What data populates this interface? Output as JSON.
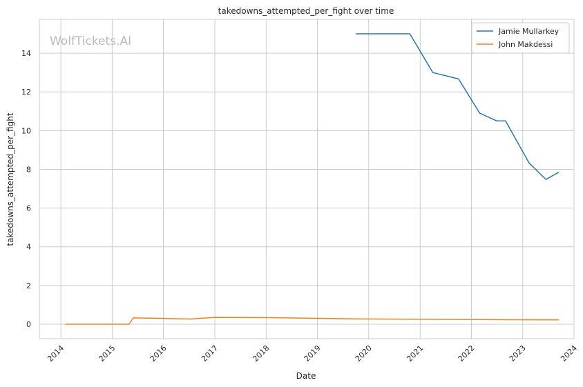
{
  "chart_data": {
    "type": "line",
    "title": "takedowns_attempted_per_fight over time",
    "xlabel": "Date",
    "ylabel": "takedowns_attempted_per_fight",
    "watermark": "WolfTickets.AI",
    "x_ticks": [
      "2014",
      "2015",
      "2016",
      "2017",
      "2018",
      "2019",
      "2020",
      "2021",
      "2022",
      "2023",
      "2024"
    ],
    "y_ticks": [
      "0",
      "2",
      "4",
      "6",
      "8",
      "10",
      "12",
      "14"
    ],
    "xlim": [
      "2013-08-01",
      "2024-01-01"
    ],
    "ylim": [
      -0.75,
      15.75
    ],
    "grid": true,
    "legend_position": "top-right",
    "series": [
      {
        "name": "Jamie Mullarkey",
        "color": "#1f77b4",
        "points": [
          [
            "2019-10-01",
            15.0
          ],
          [
            "2020-10-20",
            15.0
          ],
          [
            "2021-04-01",
            13.0
          ],
          [
            "2021-10-01",
            12.67
          ],
          [
            "2022-03-01",
            10.9
          ],
          [
            "2022-07-01",
            10.5
          ],
          [
            "2022-09-01",
            10.5
          ],
          [
            "2023-02-15",
            8.33
          ],
          [
            "2023-06-15",
            7.48
          ],
          [
            "2023-09-15",
            7.85
          ]
        ]
      },
      {
        "name": "John Makdessi",
        "color": "#ff7f0e",
        "points": [
          [
            "2014-02-01",
            0.0
          ],
          [
            "2015-05-01",
            0.0
          ],
          [
            "2015-06-01",
            0.33
          ],
          [
            "2016-07-15",
            0.27
          ],
          [
            "2017-01-01",
            0.35
          ],
          [
            "2018-01-01",
            0.34
          ],
          [
            "2019-01-01",
            0.3
          ],
          [
            "2020-01-01",
            0.27
          ],
          [
            "2021-04-15",
            0.25
          ],
          [
            "2022-09-01",
            0.23
          ],
          [
            "2023-09-15",
            0.22
          ]
        ]
      }
    ]
  }
}
